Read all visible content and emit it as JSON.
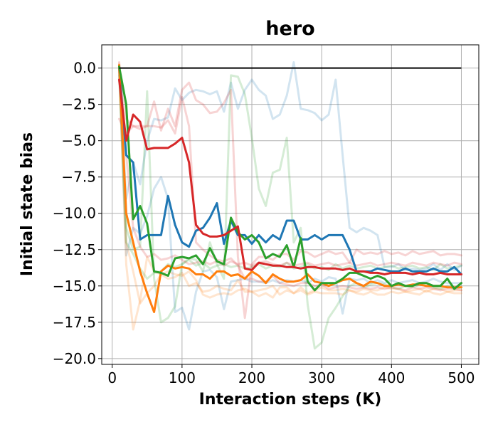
{
  "chart_data": {
    "type": "line",
    "title": "hero",
    "xlabel": "Interaction steps (K)",
    "ylabel": "Initial state bias",
    "xlim": [
      -15,
      525
    ],
    "ylim": [
      -20.4,
      1.6
    ],
    "xticks": [
      0,
      100,
      200,
      300,
      400,
      500
    ],
    "yticks": [
      0.0,
      -2.5,
      -5.0,
      -7.5,
      -10.0,
      -12.5,
      -15.0,
      -17.5,
      -20.0
    ],
    "xtick_labels": [
      "0",
      "100",
      "200",
      "300",
      "400",
      "500"
    ],
    "ytick_labels": [
      "0.0",
      "−2.5",
      "−5.0",
      "−7.5",
      "−10.0",
      "−12.5",
      "−15.0",
      "−17.5",
      "−20.0"
    ],
    "grid": true,
    "colors": {
      "blue": "#1f77b4",
      "orange": "#ff7f0e",
      "green": "#2ca02c",
      "red": "#d62728",
      "reference": "#000000"
    },
    "reference_line": {
      "x": [
        10,
        500
      ],
      "y": [
        0,
        0
      ]
    },
    "x": [
      10,
      20,
      30,
      40,
      50,
      60,
      70,
      80,
      90,
      100,
      110,
      120,
      130,
      140,
      150,
      160,
      170,
      180,
      190,
      200,
      210,
      220,
      230,
      240,
      250,
      260,
      270,
      280,
      290,
      300,
      310,
      320,
      330,
      340,
      350,
      360,
      370,
      380,
      390,
      400,
      410,
      420,
      430,
      440,
      450,
      460,
      470,
      480,
      490,
      500
    ],
    "series": [
      {
        "color": "blue",
        "alpha": 1,
        "values": [
          0,
          -6,
          -6.5,
          -11.8,
          -11.5,
          -11.5,
          -11.5,
          -8.8,
          -10.8,
          -12,
          -12.3,
          -11.2,
          -11,
          -10.3,
          -9.3,
          -12.1,
          -10.5,
          -11.5,
          -11.5,
          -12.1,
          -11.5,
          -12,
          -11.5,
          -11.8,
          -10.5,
          -10.5,
          -11.8,
          -11.8,
          -11.5,
          -11.8,
          -11.5,
          -11.5,
          -11.5,
          -12.5,
          -14,
          -14,
          -14,
          -13.8,
          -13.9,
          -14,
          -14,
          -13.8,
          -14,
          -14,
          -14,
          -13.8,
          -14,
          -14,
          -13.7,
          -14.2
        ]
      },
      {
        "color": "orange",
        "alpha": 1,
        "values": [
          0.2,
          -10,
          -12,
          -14,
          -15.5,
          -16.8,
          -14,
          -13.6,
          -13.8,
          -13.7,
          -13.8,
          -14.2,
          -14.2,
          -14.5,
          -14,
          -14,
          -14.3,
          -14.2,
          -14.5,
          -14,
          -14.3,
          -14.8,
          -14.2,
          -14.5,
          -14.7,
          -14.7,
          -14.6,
          -14.2,
          -14.7,
          -14.8,
          -15,
          -14.8,
          -14.6,
          -14.5,
          -14.8,
          -15,
          -14.7,
          -14.8,
          -15,
          -15,
          -14.9,
          -15,
          -14.9,
          -14.9,
          -15,
          -15,
          -15,
          -15.1,
          -15.1,
          -15.1
        ]
      },
      {
        "color": "green",
        "alpha": 1,
        "values": [
          0.1,
          -2.5,
          -10.4,
          -9.5,
          -10.7,
          -14,
          -14.1,
          -14.3,
          -13.1,
          -13,
          -13.1,
          -12.9,
          -13.5,
          -12.4,
          -13.3,
          -13.5,
          -10.3,
          -11.3,
          -11.8,
          -11.5,
          -12,
          -13.1,
          -12.8,
          -13,
          -12.2,
          -13.7,
          -11.7,
          -14.7,
          -15.3,
          -14.8,
          -14.8,
          -14.8,
          -14.5,
          -14.1,
          -14.1,
          -14.3,
          -14.5,
          -14.3,
          -14.5,
          -15,
          -14.8,
          -15,
          -15,
          -14.8,
          -14.8,
          -15,
          -15,
          -14.5,
          -15.2,
          -14.8
        ]
      },
      {
        "color": "red",
        "alpha": 1,
        "values": [
          -0.8,
          -5,
          -3.2,
          -3.7,
          -5.6,
          -5.5,
          -5.5,
          -5.5,
          -5.2,
          -4.8,
          -6.5,
          -10.8,
          -11.4,
          -11.6,
          -11.6,
          -11.5,
          -11.2,
          -10.9,
          -13.8,
          -13.9,
          -13.4,
          -13.5,
          -13.6,
          -13.6,
          -13.7,
          -13.7,
          -13.8,
          -13.7,
          -13.7,
          -13.8,
          -13.8,
          -13.8,
          -13.9,
          -13.8,
          -14,
          -14,
          -14.1,
          -14.1,
          -14.2,
          -14.1,
          -14.1,
          -14.1,
          -14.2,
          -14.1,
          -14.2,
          -14.2,
          -14.1,
          -14.2,
          -14.2,
          -14.2
        ]
      },
      {
        "color": "blue",
        "alpha": 0.2,
        "values": [
          0.2,
          -12.9,
          -11,
          -11.4,
          -10.2,
          -8.3,
          -7.5,
          -9,
          -16.8,
          -16.5,
          -18,
          -15.4,
          -14,
          -13.9,
          -14.4,
          -16.6,
          -14.7,
          -14.6,
          -14.5,
          -14.7,
          -14.7,
          -14.8,
          -14.6,
          -14.8,
          -14.6,
          -14.7,
          -14.6,
          -14.8,
          -14.5,
          -14.7,
          -14.4,
          -14.5,
          -16.9,
          -14.5,
          -14.6,
          -14.5,
          -14.8,
          -14.6,
          -14.8,
          -14.6,
          -14.8,
          -14.7,
          -14.6,
          -14.8,
          -14.7,
          -14.5,
          -14.7,
          -14.8,
          -14.8,
          -14.8
        ]
      },
      {
        "color": "blue",
        "alpha": 0.2,
        "values": [
          -0.2,
          -9,
          -6.5,
          -8,
          -5,
          -3.5,
          -3.6,
          -3.4,
          -1.4,
          -2.2,
          -1.7,
          -1.5,
          -1.6,
          -1.8,
          -1.6,
          -3,
          -1,
          -2.8,
          -1.5,
          -0.8,
          -1.5,
          -1.9,
          -3.5,
          -3.2,
          -1.9,
          0.4,
          -2.8,
          -2.9,
          -3.1,
          -3.6,
          -3.2,
          -0.8,
          -6,
          -11,
          -11.3,
          -11,
          -11.2,
          -11.5,
          -13.7,
          -13.7,
          -13.5,
          -13.9,
          -13.8,
          -13.9,
          -13.8,
          -13.5,
          -13.9,
          -13.5,
          -13.9,
          -13.6
        ]
      },
      {
        "color": "orange",
        "alpha": 0.2,
        "values": [
          0,
          -13.5,
          -18,
          -16,
          -13,
          -14,
          -14.2,
          -14,
          -14.2,
          -14.3,
          -14,
          -14.6,
          -15.6,
          -15.8,
          -15.6,
          -15.5,
          -15.6,
          -15.3,
          -15.2,
          -15.4,
          -15.7,
          -15.5,
          -15.8,
          -15.1,
          -15.1,
          -15.5,
          -15.3,
          -15.6,
          -15.4,
          -15.5,
          -15.5,
          -15.5,
          -15.6,
          -15.3,
          -15.5,
          -15.6,
          -15.4,
          -15.6,
          -15.6,
          -15.4,
          -15.5,
          -15.4,
          -15.5,
          -15.6,
          -15.3,
          -15.5,
          -15.6,
          -15.4,
          -15.5,
          -15.5
        ]
      },
      {
        "color": "orange",
        "alpha": 0.2,
        "values": [
          0.3,
          -12,
          -14,
          -16.2,
          -15.5,
          -15,
          -14.2,
          -14.5,
          -14.4,
          -14.1,
          -15,
          -14.8,
          -15.4,
          -15.3,
          -15,
          -15.2,
          -15.3,
          -14.6,
          -15.4,
          -15.4,
          -15.3,
          -15.2,
          -15,
          -15.6,
          -15.3,
          -15.5,
          -15.1,
          -15.5,
          -15.3,
          -15.1,
          -15.3,
          -15.3,
          -15.2,
          -15.3,
          -15.4,
          -15.2,
          -15.3,
          -15.3,
          -15.1,
          -15.2,
          -15.2,
          -15.4,
          -15.3,
          -15.2,
          -15.4,
          -15.2,
          -15.2,
          -15.4,
          -15.3,
          -15.3
        ]
      },
      {
        "color": "green",
        "alpha": 0.2,
        "values": [
          0.2,
          -11,
          -12.5,
          -12.3,
          -1.6,
          -14.5,
          -17.5,
          -17.2,
          -16.4,
          -13.5,
          -13.1,
          -13.2,
          -14,
          -12,
          -13.5,
          -14.5,
          -0.5,
          -0.6,
          -1.8,
          -4.8,
          -8.3,
          -9.5,
          -7.2,
          -7,
          -4.8,
          -12,
          -11,
          -16.3,
          -19.3,
          -18.9,
          -17.2,
          -16.5,
          -15.7,
          -15,
          -14.8,
          -15.1,
          -14.9,
          -14.8,
          -14.9,
          -15.1,
          -15.2,
          -15,
          -15.1,
          -14.9,
          -15,
          -15.1,
          -15.2,
          -15,
          -15.2,
          -15.1
        ]
      },
      {
        "color": "green",
        "alpha": 0.2,
        "values": [
          -0.5,
          -12,
          -12.8,
          -13.8,
          -14.5,
          -14.1,
          -14,
          -13.5,
          -13.7,
          -13.5,
          -13.2,
          -13.6,
          -13.4,
          -13.8,
          -13.6,
          -13.5,
          -13.7,
          -13.6,
          -13.8,
          -13.7,
          -13.5,
          -13.8,
          -13.6,
          -13.7,
          -13.4,
          -13.8,
          -13.7,
          -13.5,
          -13.8,
          -13.7,
          -13.9,
          -13.5,
          -13.8,
          -13.6,
          -13.8,
          -13.7,
          -13.6,
          -13.8,
          -13.7,
          -13.6,
          -13.8,
          -13.7,
          -13.6,
          -13.8,
          -13.7,
          -13.9,
          -13.5,
          -13.8,
          -13.7,
          -13.6
        ]
      },
      {
        "color": "red",
        "alpha": 0.2,
        "values": [
          -0.3,
          -3.5,
          -4,
          -4.2,
          -4,
          -2.3,
          -4.3,
          -2.8,
          -4,
          -1.5,
          -1,
          -2.2,
          -2.5,
          -3.1,
          -3,
          -2.4,
          -1.5,
          -13,
          -17.2,
          -13.5,
          -13,
          -13,
          -13.2,
          -12.8,
          -12.8,
          -13.2,
          -12.6,
          -12.7,
          -13,
          -12.8,
          -12.6,
          -12.8,
          -12.7,
          -13.4,
          -12.5,
          -12.8,
          -12.7,
          -12.8,
          -12.6,
          -12.8,
          -12.7,
          -12.9,
          -12.6,
          -12.8,
          -12.7,
          -12.6,
          -12.9,
          -12.8,
          -12.8,
          -12.9
        ]
      },
      {
        "color": "red",
        "alpha": 0.2,
        "values": [
          0.4,
          -6,
          -11,
          -12.3,
          -13,
          -12.8,
          -13.2,
          -13.1,
          -12.9,
          -13.2,
          -13.5,
          -13.4,
          -13.3,
          -13.5,
          -13.3,
          -13.6,
          -13.3,
          -13.5,
          -13.4,
          -13.6,
          -13.4,
          -13.3,
          -13.5,
          -13.6,
          -13.4,
          -13.6,
          -13.5,
          -13.4,
          -13.6,
          -13.5,
          -13.4,
          -13.6,
          -13.5,
          -13.4,
          -13.6,
          -13.5,
          -13.4,
          -13.6,
          -13.5,
          -13.4,
          -13.5,
          -13.6,
          -13.4,
          -13.5,
          -13.6,
          -13.4,
          -13.5,
          -13.6,
          -13.4,
          -13.5
        ]
      },
      {
        "color": "red",
        "alpha": 0.2,
        "values": [
          -3.5,
          -4.5,
          -4,
          -4,
          -4,
          -4,
          -4.1,
          -3.6,
          -4.5,
          -2,
          -4,
          -12,
          -12.5,
          -12.9,
          -13.2,
          -13.3,
          -13.1,
          -13.6,
          -14.5,
          -14.5,
          -14.7,
          -14.7,
          -14.3,
          -14.8,
          -14.9,
          -15,
          -14.8,
          -14.8,
          -15,
          -14.9,
          -15.2,
          -15.1,
          -15,
          -15.1,
          -15.2,
          -15.1,
          -15.2,
          -15.1,
          -15.2,
          -15.1,
          -15.2,
          -15.3,
          -15.1,
          -15.2,
          -15.1,
          -15.2,
          -15.3,
          -15.2,
          -15.2,
          -15.3
        ]
      }
    ]
  }
}
